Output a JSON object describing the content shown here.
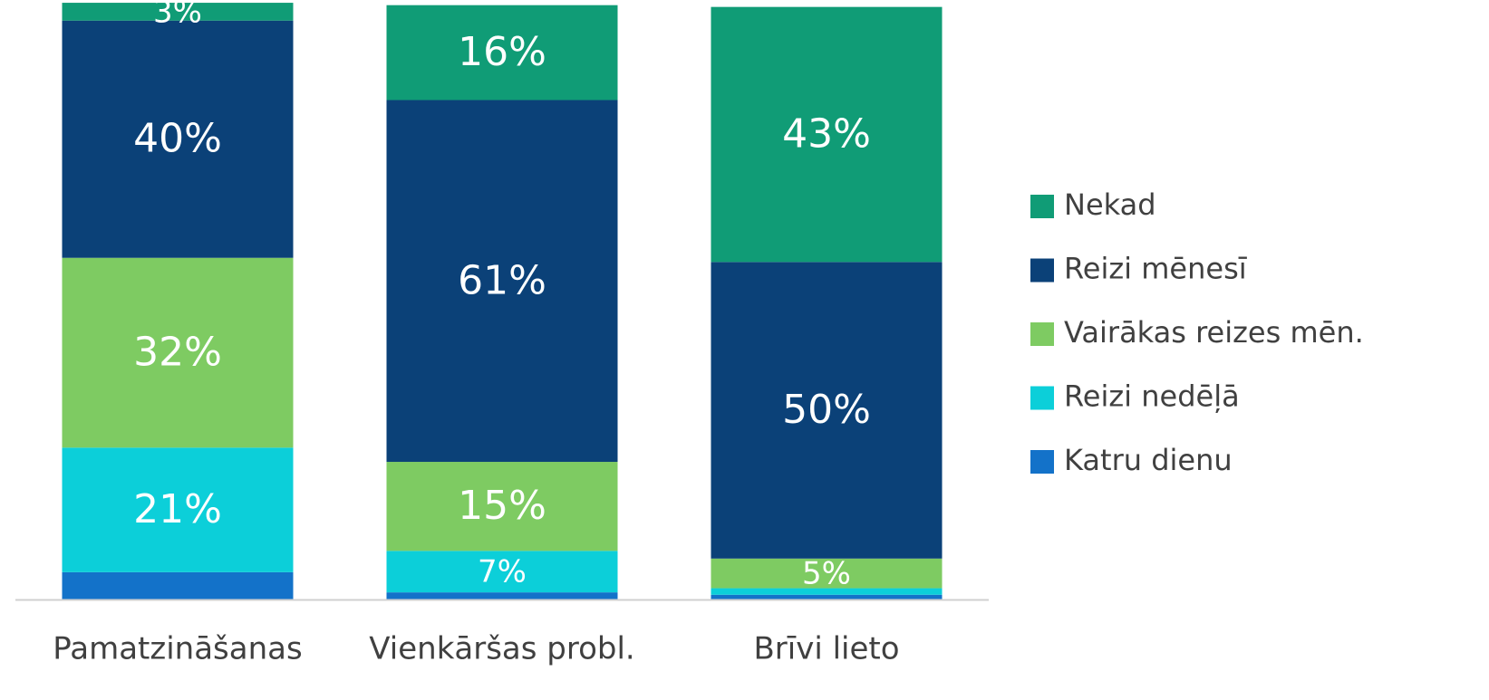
{
  "chart_data": {
    "type": "stacked_bar",
    "categories": [
      "Pamatzināšanas",
      "Vienkāršas probl.",
      "Brīvi lieto"
    ],
    "ylim": [
      0,
      100
    ],
    "series": [
      {
        "name": "Katru dienu",
        "color": "#1372c9",
        "values": [
          4.6,
          1.2,
          0.8
        ],
        "value_labels": [
          null,
          null,
          null
        ]
      },
      {
        "name": "Reizi nedēļā",
        "color": "#0ccfd9",
        "values": [
          21,
          7,
          1.1
        ],
        "value_labels": [
          "21%",
          "7%",
          null
        ]
      },
      {
        "name": "Vairākas reizes mēn.",
        "color": "#7ecb62",
        "values": [
          32,
          15,
          5
        ],
        "value_labels": [
          "32%",
          "15%",
          "5%"
        ]
      },
      {
        "name": "Reizi mēnesī",
        "color": "#0b4178",
        "values": [
          40,
          61,
          50
        ],
        "value_labels": [
          "40%",
          "61%",
          "50%"
        ]
      },
      {
        "name": "Nekad",
        "color": "#109c76",
        "values": [
          3,
          16,
          43
        ],
        "value_labels": [
          "3%",
          "16%",
          "43%"
        ]
      }
    ]
  }
}
